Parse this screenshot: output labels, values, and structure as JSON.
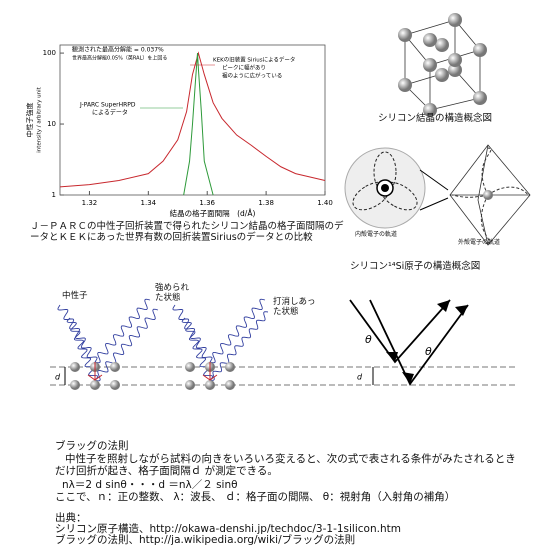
{
  "chart_data": {
    "type": "line",
    "log_y": true,
    "grid": false,
    "xlim": [
      1.31,
      1.4
    ],
    "ylim": [
      1,
      130
    ],
    "xticks": [
      1.32,
      1.34,
      1.36,
      1.38,
      {
        "value": 1.4,
        "label": "1.40"
      }
    ],
    "yticks": [
      1,
      10,
      100
    ],
    "xlabel": "結晶の格子面間隔　(d/Å)",
    "ylabel": "中性子強度",
    "ylabel2": "intensity / arbitrary unit",
    "annotations": [
      "観測された最高分解能 = 0.037%",
      "世界最高分解能0.05%（英RAL）を上回る",
      "KEKの旧装置 Siriusによるデータ",
      "ピークに幅があり",
      "裾のように広がっている",
      "J-PARC SuperHRPD",
      "によるデータ"
    ],
    "series": [
      {
        "color": "#c8282e",
        "x": [
          1.31,
          1.32,
          1.33,
          1.34,
          1.345,
          1.35,
          1.353,
          1.355,
          1.357,
          1.359,
          1.362,
          1.365,
          1.37,
          1.375,
          1.38,
          1.385,
          1.39,
          1.4
        ],
        "values": [
          1.3,
          1.4,
          1.6,
          2,
          3,
          6,
          15,
          50,
          100,
          50,
          20,
          12,
          7,
          5,
          3.5,
          2.5,
          2,
          1.6
        ]
      },
      {
        "color": "#2e9a3a",
        "x": [
          1.352,
          1.354,
          1.355,
          1.356,
          1.3567,
          1.357,
          1.358,
          1.359,
          1.362
        ],
        "values": [
          1,
          3,
          10,
          40,
          100,
          60,
          15,
          3,
          1
        ]
      }
    ]
  },
  "caption": "Ｊ－ＰＡＲＣの中性子回折装置で得られたシリコン結晶の格子面間隔のデータとＫＥＫにあった世界有数の回折装置Siriusのデータとの比較",
  "crystal_caption": "シリコン結晶の構造概念図",
  "atom": {
    "inner": "内殻電子の軌道",
    "outer": "外殻電子の軌道",
    "caption": "シリコン¹⁴Si原子の構造概念図"
  },
  "bragg_diagram": {
    "neutron": "中性子",
    "constructive": "強められた状態",
    "destructive": "打消しあった状態",
    "theta": "θ",
    "d": "d"
  },
  "text": {
    "heading": "ブラッグの法則",
    "body": "中性子を照射しながら試料の向きをいろいろ変えると、次の式で表される条件がみたされるときだけ回折が起き、格子面間隔ｄ が測定できる。",
    "formula": "nλ＝2 d sinθ・・・d ＝nλ／２ sinθ",
    "where": "ここで、ｎ：正の整数、 λ：波長、 ｄ：格子面の間隔、 θ：視射角（入射角の補角）",
    "source_heading": "出典：",
    "sources": [
      "シリコン原子構造、http://okawa-denshi.jp/techdoc/3-1-1silicon.htm",
      "ブラッグの法則、http://ja.wikipedia.org/wiki/ブラッグの法則"
    ]
  }
}
